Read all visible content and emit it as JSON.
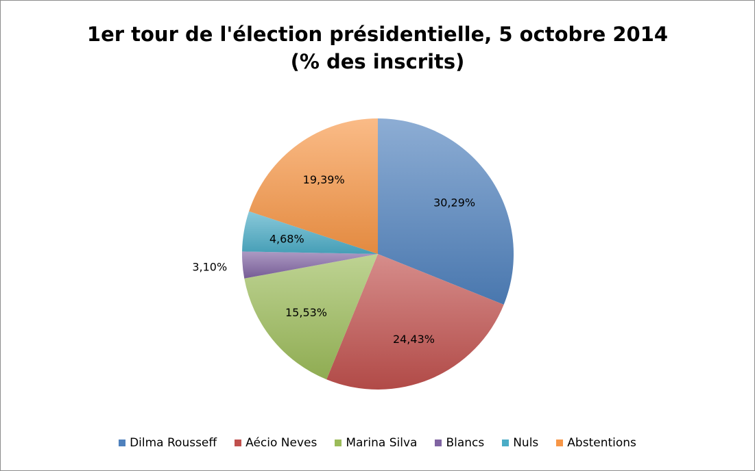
{
  "chart_data": {
    "type": "pie",
    "title": "1er tour de l'élection présidentielle, 5 octobre 2014",
    "subtitle": "(% des inscrits)",
    "categories": [
      "Dilma Rousseff",
      "Aécio Neves",
      "Marina Silva",
      "Blancs",
      "Nuls",
      "Abstentions"
    ],
    "values": [
      30.29,
      24.43,
      15.53,
      3.1,
      4.68,
      19.39
    ],
    "data_labels": [
      "30,29%",
      "24,43%",
      "15,53%",
      "3,10%",
      "4,68%",
      "19,39%"
    ],
    "colors": [
      "#4F81BD",
      "#C0504D",
      "#9BBB59",
      "#8064A2",
      "#4BACC6",
      "#F79646"
    ],
    "legend_position": "bottom"
  }
}
